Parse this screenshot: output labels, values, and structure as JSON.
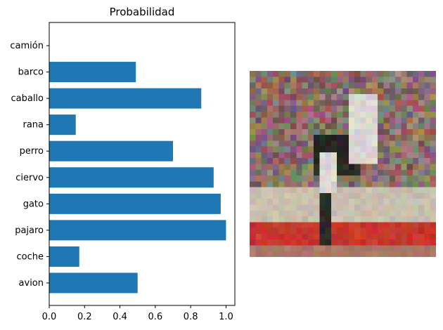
{
  "chart_data": {
    "type": "bar",
    "orientation": "horizontal",
    "title": "Probabilidad",
    "xlabel": "",
    "ylabel": "",
    "categories": [
      "avion",
      "coche",
      "pajaro",
      "gato",
      "ciervo",
      "perro",
      "rana",
      "caballo",
      "barco",
      "camión"
    ],
    "values": [
      0.5,
      0.17,
      1.0,
      0.97,
      0.93,
      0.7,
      0.15,
      0.86,
      0.49,
      0.0
    ],
    "xlim": [
      0,
      1.05
    ],
    "xticks": [
      "0.0",
      "0.2",
      "0.4",
      "0.6",
      "0.8",
      "1.0"
    ],
    "grid": false,
    "bar_color": "#1f77b4"
  },
  "image_panel": {
    "icon": "pixelated-horse-rider-image",
    "colors": {
      "crowd": "#8a6f6a",
      "sand": "#c9bfae",
      "red_band": "#c8372b",
      "dark": "#2a2826",
      "white": "#dcd8d2"
    }
  }
}
